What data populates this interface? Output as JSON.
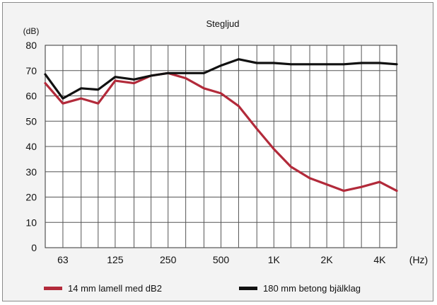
{
  "chart_data": {
    "type": "line",
    "title": "Stegljud",
    "ylabel": "(dB)",
    "xlabel": "(Hz)",
    "ylim": [
      0,
      80
    ],
    "y_ticks": [
      "0",
      "10",
      "20",
      "30",
      "40",
      "50",
      "60",
      "70",
      "80"
    ],
    "x_scale": "log",
    "x_range_hz": [
      50,
      5000
    ],
    "x_ticks": [
      {
        "hz": 63,
        "label": "63"
      },
      {
        "hz": 125,
        "label": "125"
      },
      {
        "hz": 250,
        "label": "250"
      },
      {
        "hz": 500,
        "label": "500"
      },
      {
        "hz": 1000,
        "label": "1K"
      },
      {
        "hz": 2000,
        "label": "2K"
      },
      {
        "hz": 4000,
        "label": "4K"
      }
    ],
    "x_gridlines_hz": [
      80,
      100,
      160,
      200,
      315,
      400,
      630,
      800,
      1250,
      1600,
      2500,
      3150
    ],
    "grid": true,
    "legend_position": "bottom",
    "series": [
      {
        "name": "14 mm lamell med dB2",
        "color": "#b22a3a",
        "x": [
          50,
          63,
          80,
          100,
          125,
          160,
          200,
          250,
          315,
          400,
          500,
          630,
          800,
          1000,
          1250,
          1600,
          2000,
          2500,
          3150,
          4000,
          5000
        ],
        "y": [
          65,
          57,
          59,
          57,
          66,
          65,
          68,
          69,
          67,
          63,
          61,
          56,
          47,
          39,
          32,
          27.5,
          25,
          22.5,
          24,
          26,
          22.5
        ]
      },
      {
        "name": "180 mm betong bjälklag",
        "color": "#111111",
        "x": [
          50,
          63,
          80,
          100,
          125,
          160,
          200,
          250,
          315,
          400,
          500,
          630,
          800,
          1000,
          1250,
          1600,
          2000,
          2500,
          3150,
          4000,
          5000
        ],
        "y": [
          68.5,
          59,
          63,
          62.5,
          67.5,
          66.5,
          68,
          69,
          69,
          69,
          72,
          74.5,
          73,
          73,
          72.5,
          72.5,
          72.5,
          72.5,
          73,
          73,
          72.5
        ]
      }
    ]
  }
}
